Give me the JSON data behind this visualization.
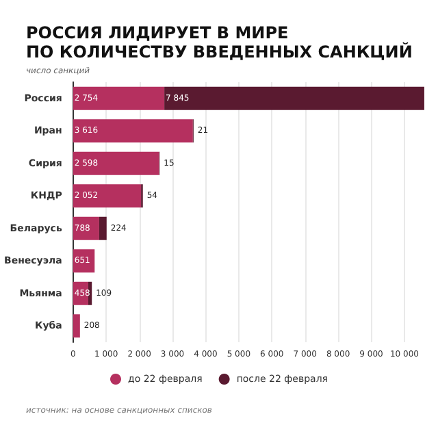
{
  "chart_data": {
    "type": "bar",
    "orientation": "horizontal",
    "stacked": true,
    "title": "РОССИЯ ЛИДИРУЕТ В МИРЕ\nПО КОЛИЧЕСТВУ ВВЕДЕННЫХ САНКЦИЙ",
    "subtitle": "число санкций",
    "annotations": [
      "источник: на основе санкционных списков"
    ],
    "categories": [
      "Россия",
      "Иран",
      "Сирия",
      "КНДР",
      "Беларусь",
      "Венесуэла",
      "Мьянма",
      "Куба"
    ],
    "series": [
      {
        "name": "до 22 февраля",
        "color": "#b5305f",
        "values": [
          2754,
          3616,
          2598,
          2052,
          788,
          651,
          458,
          208
        ],
        "value_labels": [
          "2 754",
          "3 616",
          "2 598",
          "2 052",
          "788",
          "651",
          "458",
          "208"
        ]
      },
      {
        "name": "после 22 февраля",
        "color": "#5a1a30",
        "values": [
          7845,
          21,
          15,
          54,
          224,
          null,
          109,
          null
        ],
        "value_labels": [
          "7 845",
          "21",
          "15",
          "54",
          "224",
          null,
          "109",
          null
        ]
      }
    ],
    "xlim": [
      0,
      10600
    ],
    "xticks": [
      0,
      {
        "value": 1000,
        "label": "1 000"
      },
      {
        "value": 2000,
        "label": "2 000"
      },
      {
        "value": 3000,
        "label": "3 000"
      },
      {
        "value": 4000,
        "label": "4 000"
      },
      {
        "value": 5000,
        "label": "5 000"
      },
      {
        "value": 6000,
        "label": "6 000"
      },
      {
        "value": 7000,
        "label": "7 000"
      },
      {
        "value": 8000,
        "label": "8 000"
      },
      {
        "value": 9000,
        "label": "9 000"
      },
      {
        "value": 10000,
        "label": "10 000"
      }
    ],
    "grid": "x",
    "legend": "bottom"
  }
}
